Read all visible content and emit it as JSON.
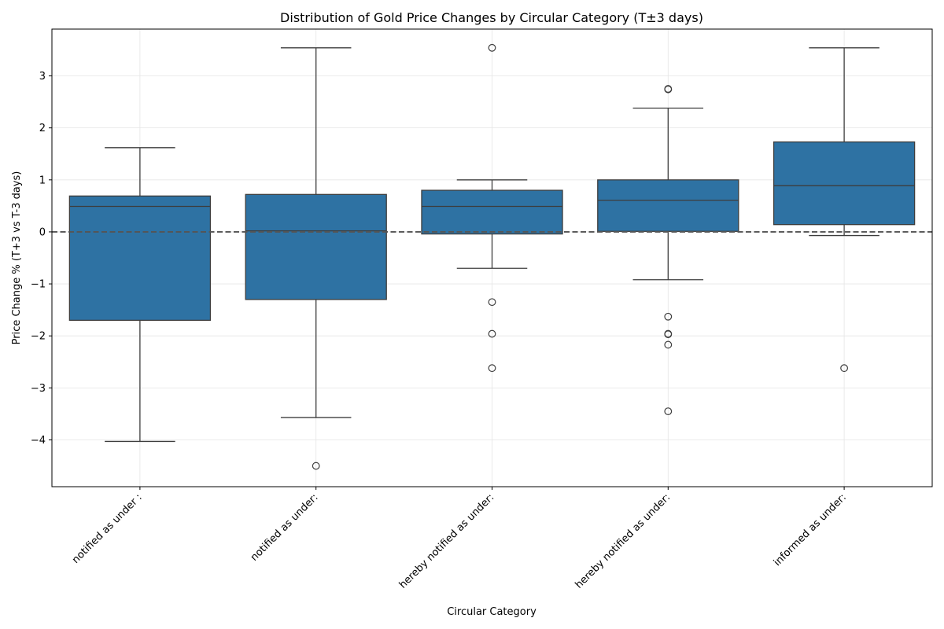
{
  "chart_data": {
    "type": "box",
    "title": "Distribution of Gold Price Changes by Circular Category (T±3 days)",
    "xlabel": "Circular Category",
    "ylabel": "Price Change % (T+3 vs T-3 days)",
    "ylim": [
      -4.9,
      3.9
    ],
    "yticks": [
      3,
      2,
      1,
      0,
      -1,
      -2,
      -3,
      -4
    ],
    "ytick_labels": [
      "3",
      "2",
      "1",
      "0",
      "−1",
      "−2",
      "−3",
      "−4"
    ],
    "reference_line": 0,
    "grid": true,
    "colors": {
      "box": "#2e72a3",
      "line": "#3d3d3d",
      "ref": "#555555",
      "grid": "#e5e5e5"
    },
    "categories": [
      "notified as under :",
      "notified as under:",
      "hereby  notified as under:",
      "hereby notified as under:",
      "informed as under:"
    ],
    "boxes": [
      {
        "whisker_low": -4.03,
        "q1": -1.7,
        "median": 0.49,
        "q3": 0.69,
        "whisker_high": 1.62,
        "outliers": []
      },
      {
        "whisker_low": -3.57,
        "q1": -1.3,
        "median": 0.02,
        "q3": 0.72,
        "whisker_high": 3.54,
        "outliers": [
          -4.5
        ]
      },
      {
        "whisker_low": -0.7,
        "q1": -0.04,
        "median": 0.49,
        "q3": 0.8,
        "whisker_high": 1.0,
        "outliers": [
          3.54,
          -1.35,
          -1.96,
          -2.62
        ]
      },
      {
        "whisker_low": -0.92,
        "q1": 0.01,
        "median": 0.61,
        "q3": 1.0,
        "whisker_high": 2.38,
        "outliers": [
          2.74,
          2.75,
          -1.63,
          -1.96,
          -1.97,
          -2.17,
          -3.45
        ]
      },
      {
        "whisker_low": -0.07,
        "q1": 0.14,
        "median": 0.89,
        "q3": 1.73,
        "whisker_high": 3.54,
        "outliers": [
          -2.62
        ]
      }
    ]
  }
}
